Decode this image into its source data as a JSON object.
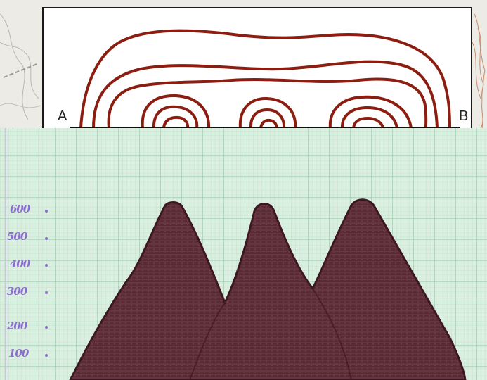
{
  "section": {
    "start_label": "A",
    "end_label": "B"
  },
  "profile": {
    "y_ticks": [
      "600",
      "500",
      "400",
      "300",
      "200",
      "100"
    ]
  },
  "colors": {
    "contour": "#8b1e10",
    "profile_fill": "#5a2a35",
    "grid_paper": "#d9eadc",
    "grid_line": "#8fc2a6",
    "tick_text": "#8a6fc8"
  }
}
